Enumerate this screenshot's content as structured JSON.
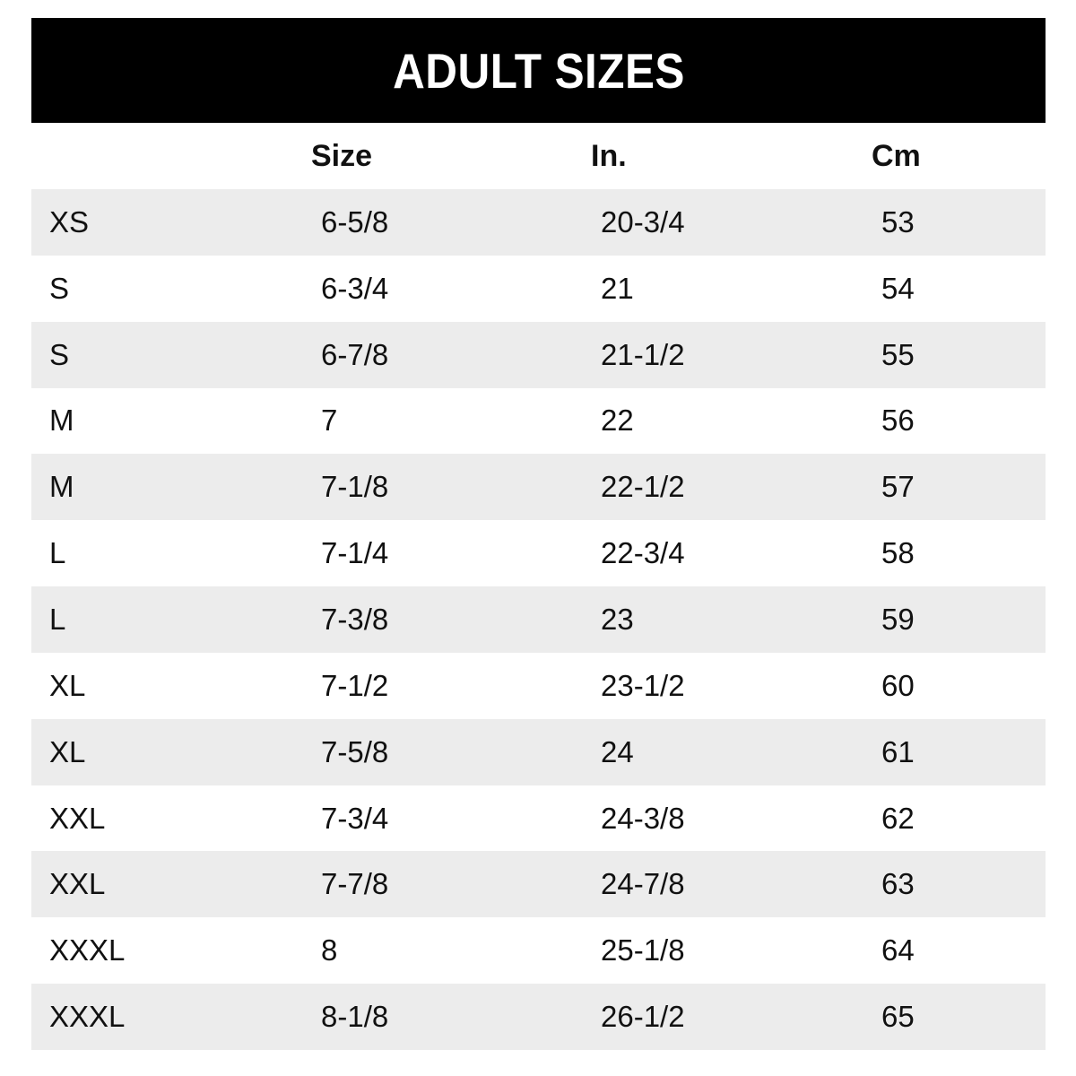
{
  "title": "ADULT SIZES",
  "table": {
    "headers": [
      "",
      "Size",
      "In.",
      "Cm"
    ],
    "rows": [
      {
        "label": "XS",
        "size": "6-5/8",
        "inches": "20-3/4",
        "cm": "53"
      },
      {
        "label": "S",
        "size": "6-3/4",
        "inches": "21",
        "cm": "54"
      },
      {
        "label": "S",
        "size": "6-7/8",
        "inches": "21-1/2",
        "cm": "55"
      },
      {
        "label": "M",
        "size": "7",
        "inches": "22",
        "cm": "56"
      },
      {
        "label": "M",
        "size": "7-1/8",
        "inches": "22-1/2",
        "cm": "57"
      },
      {
        "label": "L",
        "size": "7-1/4",
        "inches": "22-3/4",
        "cm": "58"
      },
      {
        "label": "L",
        "size": "7-3/8",
        "inches": "23",
        "cm": "59"
      },
      {
        "label": "XL",
        "size": "7-1/2",
        "inches": "23-1/2",
        "cm": "60"
      },
      {
        "label": "XL",
        "size": "7-5/8",
        "inches": "24",
        "cm": "61"
      },
      {
        "label": "XXL",
        "size": "7-3/4",
        "inches": "24-3/8",
        "cm": "62"
      },
      {
        "label": "XXL",
        "size": "7-7/8",
        "inches": "24-7/8",
        "cm": "63"
      },
      {
        "label": "XXXL",
        "size": "8",
        "inches": "25-1/8",
        "cm": "64"
      },
      {
        "label": "XXXL",
        "size": "8-1/8",
        "inches": "26-1/2",
        "cm": "65"
      }
    ]
  },
  "colors": {
    "banner_bg": "#000000",
    "banner_text": "#ffffff",
    "row_alt_bg": "#ececec",
    "text": "#111111"
  },
  "chart_data": {
    "type": "table",
    "title": "ADULT SIZES",
    "columns": [
      "",
      "Size",
      "In.",
      "Cm"
    ],
    "rows": [
      [
        "XS",
        "6-5/8",
        "20-3/4",
        "53"
      ],
      [
        "S",
        "6-3/4",
        "21",
        "54"
      ],
      [
        "S",
        "6-7/8",
        "21-1/2",
        "55"
      ],
      [
        "M",
        "7",
        "22",
        "56"
      ],
      [
        "M",
        "7-1/8",
        "22-1/2",
        "57"
      ],
      [
        "L",
        "7-1/4",
        "22-3/4",
        "58"
      ],
      [
        "L",
        "7-3/8",
        "23",
        "59"
      ],
      [
        "XL",
        "7-1/2",
        "23-1/2",
        "60"
      ],
      [
        "XL",
        "7-5/8",
        "24",
        "61"
      ],
      [
        "XXL",
        "7-3/4",
        "24-3/8",
        "62"
      ],
      [
        "XXL",
        "7-7/8",
        "24-7/8",
        "63"
      ],
      [
        "XXXL",
        "8",
        "25-1/8",
        "64"
      ],
      [
        "XXXL",
        "8-1/8",
        "26-1/2",
        "65"
      ]
    ],
    "layout_hints": {
      "banner": "black full-width bar with centered white bold title",
      "alternating_rows": "odd rows light gray #ececec, even rows white",
      "alignment": "all cells left-aligned"
    }
  }
}
